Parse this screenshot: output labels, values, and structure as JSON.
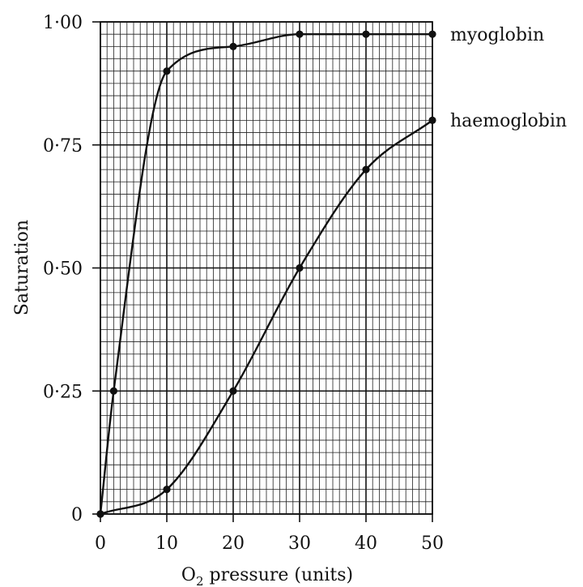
{
  "chart_data": {
    "type": "line",
    "xlabel": "O",
    "xlabel_sub": "2",
    "xlabel_rest": " pressure (units)",
    "ylabel": "Saturation",
    "xlim": [
      0,
      50
    ],
    "ylim": [
      0,
      1
    ],
    "grid": true,
    "x_ticks": [
      0,
      10,
      20,
      30,
      40,
      50
    ],
    "x_tick_labels": [
      "0",
      "10",
      "20",
      "30",
      "40",
      "50"
    ],
    "y_ticks": [
      0,
      0.25,
      0.5,
      0.75,
      1
    ],
    "y_tick_labels": [
      "0",
      "0·25",
      "0·50",
      "0·75",
      "1·00"
    ],
    "series": [
      {
        "name": "myoglobin",
        "x": [
          0,
          2,
          10,
          20,
          30,
          40,
          50
        ],
        "y": [
          0,
          0.25,
          0.9,
          0.95,
          0.975,
          0.975,
          0.975
        ]
      },
      {
        "name": "haemoglobin",
        "x": [
          0,
          10,
          20,
          30,
          40,
          50
        ],
        "y": [
          0,
          0.05,
          0.25,
          0.5,
          0.7,
          0.8
        ]
      }
    ]
  }
}
